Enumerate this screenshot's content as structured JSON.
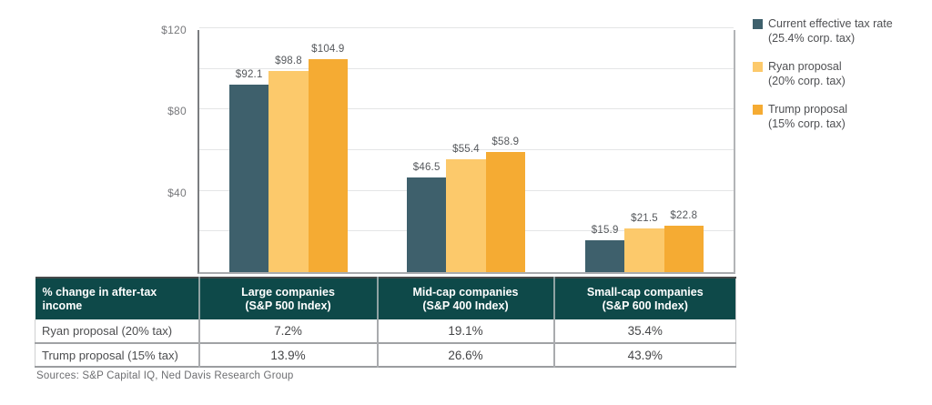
{
  "chart_data": {
    "type": "bar",
    "title": "",
    "categories": [
      "Large companies (S&P 500 Index)",
      "Mid-cap companies (S&P 400 Index)",
      "Small-cap companies (S&P 600 Index)"
    ],
    "series": [
      {
        "name": "Current effective tax rate (25.4% corp. tax)",
        "values": [
          92.1,
          46.5,
          15.9
        ],
        "color": "#3e606c"
      },
      {
        "name": "Ryan proposal (20% corp. tax)",
        "values": [
          98.8,
          55.4,
          21.5
        ],
        "color": "#fcc96b"
      },
      {
        "name": "Trump proposal (15% corp. tax)",
        "values": [
          104.9,
          58.9,
          22.8
        ],
        "color": "#f5ab33"
      }
    ],
    "value_label_prefix": "$",
    "xlabel": "",
    "ylabel": "",
    "ylim": [
      0,
      120
    ],
    "y_ticks": [
      {
        "value": 40,
        "label": "$40"
      },
      {
        "value": 80,
        "label": "$80"
      },
      {
        "value": 120,
        "label": "$120"
      }
    ],
    "grid_step": 20,
    "grid": true,
    "legend_position": "right"
  },
  "legend": {
    "items": [
      {
        "lines": [
          "Current effective tax rate",
          "(25.4% corp. tax)"
        ],
        "color": "#3e606c"
      },
      {
        "lines": [
          "Ryan proposal",
          "(20% corp. tax)"
        ],
        "color": "#fcc96b"
      },
      {
        "lines": [
          "Trump proposal",
          "(15% corp. tax)"
        ],
        "color": "#f5ab33"
      }
    ]
  },
  "table": {
    "header_bg": "#0e4949",
    "header_text_color": "#ffffff",
    "header": [
      {
        "lines": [
          "% change in after-tax income"
        ]
      },
      {
        "lines": [
          "Large companies",
          "(S&P 500 Index)"
        ]
      },
      {
        "lines": [
          "Mid-cap companies",
          "(S&P 400 Index)"
        ]
      },
      {
        "lines": [
          "Small-cap companies",
          "(S&P 600 Index)"
        ]
      }
    ],
    "rows": [
      {
        "label": "Ryan proposal (20% tax)",
        "values": [
          "7.2%",
          "19.1%",
          "35.4%"
        ]
      },
      {
        "label": "Trump proposal (15% tax)",
        "values": [
          "13.9%",
          "26.6%",
          "43.9%"
        ]
      }
    ]
  },
  "footer": {
    "sources": "Sources: S&P Capital IQ, Ned Davis Research Group"
  }
}
